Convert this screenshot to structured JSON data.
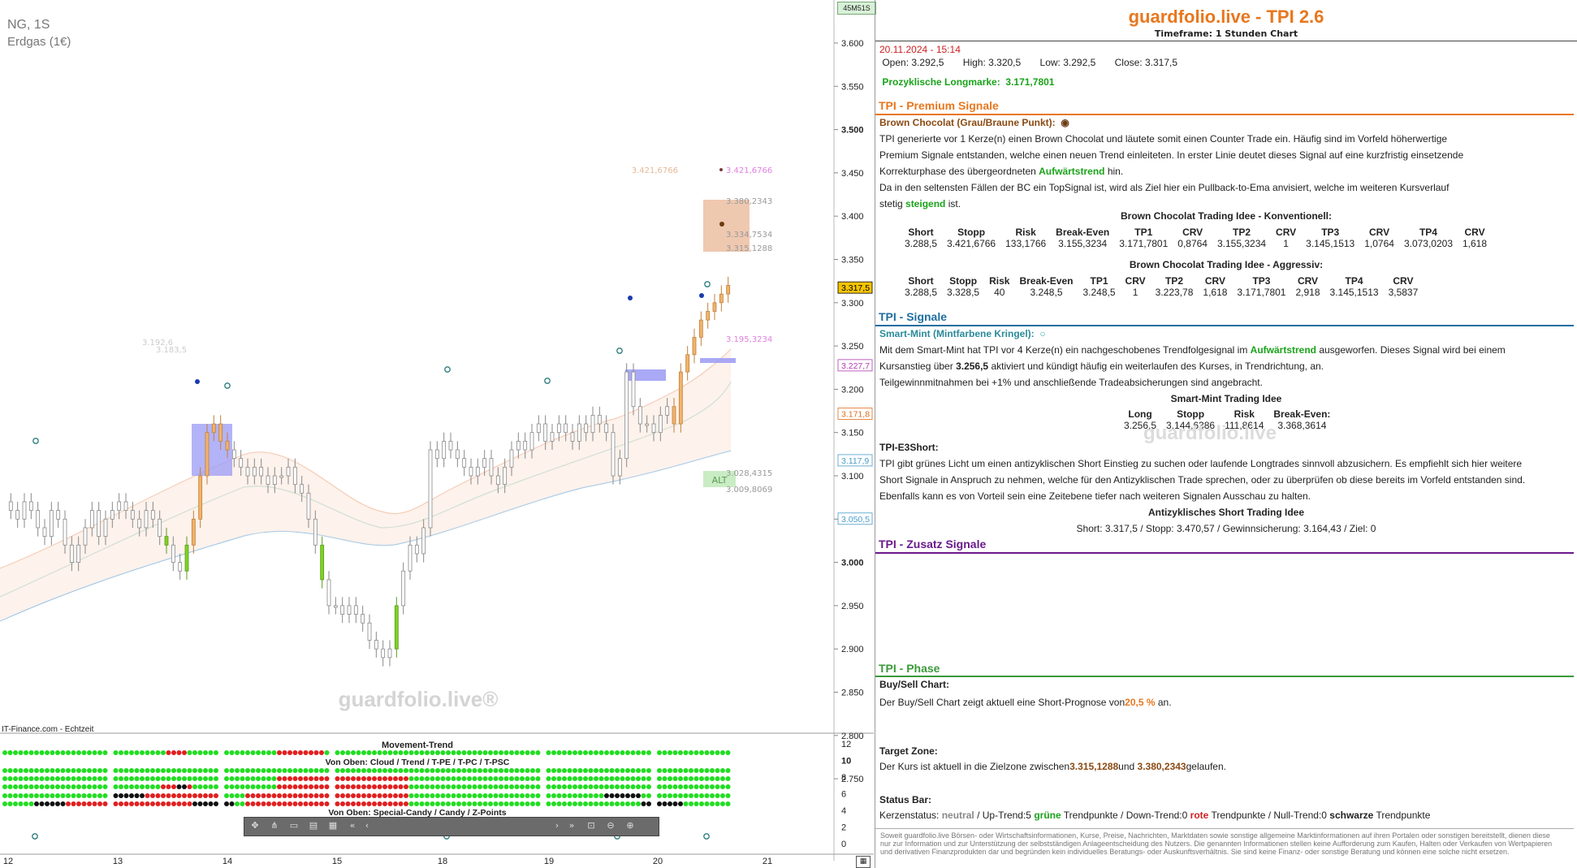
{
  "chart": {
    "symbol": "NG, 1S",
    "name": "Erdgas (1€)",
    "timer": "45M51S",
    "source": "IT-Finance.com - Echtzeit",
    "watermark": "guardfolio.live®",
    "y_ticks": [
      "3.600",
      "3.550",
      "3.500",
      "3.450",
      "3.400",
      "3.350",
      "3.300",
      "3.250",
      "3.200",
      "3.150",
      "3.100",
      "3.050",
      "3.000",
      "2.950",
      "2.900",
      "2.850",
      "2.800",
      "2.750"
    ],
    "x_ticks": [
      "12",
      "13",
      "14",
      "15",
      "18",
      "19",
      "20",
      "21"
    ],
    "price_tags": [
      {
        "label": "3.317,5",
        "color": "#f5c400",
        "text": "#000"
      },
      {
        "label": "3.227,7",
        "color": "#ffffff",
        "text": "#b03cb0"
      },
      {
        "label": "3.171,8",
        "color": "#ffffff",
        "text": "#e06d1e"
      },
      {
        "label": "3.117,9",
        "color": "#ffffff",
        "text": "#4a9cc8"
      },
      {
        "label": "3.050,5",
        "color": "#ffffff",
        "text": "#4a9cc8"
      }
    ],
    "annotations": {
      "a1": "3.421,6766",
      "a2": "3.421,6766",
      "a3": "3.380,2343",
      "a4": "3.334,7534",
      "a5": "3.315,1288",
      "a6": "3.195,3234",
      "a7": "3.192,6",
      "a8": "3.183,5",
      "a9": "3.028,4315",
      "a10": "3.009,8069",
      "alt": "ALT"
    },
    "indicator": {
      "title": "Movement-Trend",
      "sub1": "Von Oben: Cloud / Trend / T-PE / T-PC / T-PSC",
      "sub2": "Von Oben: Special-Candy / Candy / Z-Points",
      "y_ticks": [
        "12",
        "10",
        "8",
        "6",
        "4",
        "2",
        "0"
      ]
    }
  },
  "panel": {
    "title": "guardfolio.live - TPI 2.6",
    "timeframe": "Timeframe: 1 Stunden Chart",
    "datetime": "20.11.2024 - 15:14",
    "open_label": "Open:",
    "open": "3.292,5",
    "high_label": "High:",
    "high": "3.320,5",
    "low_label": "Low:",
    "low": "3.292,5",
    "close_label": "Close:",
    "close": "3.317,5",
    "prozyk_label": "Prozyklische Longmarke:",
    "prozyk": "3.171,7801",
    "premium": {
      "title": "TPI - Premium Signale",
      "bc_label": "Brown Chocolat (Grau/Braune Punkt):",
      "l1": "TPI generierte vor 1  Kerze(n) einen Brown Chocolat und läutete somit einen Counter Trade ein. Häufig sind im Vorfeld höherwertige",
      "l2": "Premium Signale entstanden, welche einen neuen Trend einleiteten. In erster Linie deutet dieses Signal auf eine kurzfristig einsetzende",
      "l3a": "Korrekturphase des übergeordneten ",
      "l3b": "Aufwärtstrend",
      "l3c": " hin.",
      "l4": "Da in den seltensten Fällen der BC ein TopSignal ist, wird als Ziel hier ein Pullback-to-Ema anvisiert, welche im weiteren Kursverlauf",
      "l5a": "stetig ",
      "l5b": "steigend",
      "l5c": " ist.",
      "konv_title": "Brown Chocolat Trading Idee - Konventionell:",
      "aggr_title": "Brown Chocolat Trading Idee - Aggressiv:",
      "headers": [
        "Short",
        "Stopp",
        "Risk",
        "Break-Even",
        "TP1",
        "CRV",
        "TP2",
        "CRV",
        "TP3",
        "CRV",
        "TP4",
        "CRV"
      ],
      "konv": [
        "3.288,5",
        "3.421,6766",
        "133,1766",
        "3.155,3234",
        "3.171,7801",
        "0,8764",
        "3.155,3234",
        "1",
        "3.145,1513",
        "1,0764",
        "3.073,0203",
        "1,618"
      ],
      "aggr": [
        "3.288,5",
        "3.328,5",
        "40",
        "3.248,5",
        "3.248,5",
        "1",
        "3.223,78",
        "1,618",
        "3.171,7801",
        "2,918",
        "3.145,1513",
        "3,5837"
      ]
    },
    "signale": {
      "title": "TPI - Signale",
      "sm_label": "Smart-Mint (Mintfarbene Kringel):",
      "l1a": "Mit dem Smart-Mint hat TPI vor 4  Kerze(n) ein nachgeschobenes Trendfolgesignal im ",
      "l1b": "Aufwärtstrend",
      "l1c": " ausgeworfen. Dieses Signal wird bei einem",
      "l2a": "Kursanstieg über ",
      "l2b": "3.256,5",
      "l2c": "   aktiviert und kündigt häufig ein weiterlaufen des Kurses, in Trendrichtung, an.",
      "l3": "Teilgewinnmitnahmen bei +1% und anschließende Tradeabsicherungen sind angebracht.",
      "sm_title": "Smart-Mint Trading Idee",
      "sm_headers": [
        "Long",
        "Stopp",
        "Risk",
        "Break-Even:"
      ],
      "sm_values": [
        "3.256,5",
        "3.144,6386",
        "111,8614",
        "3.368,3614"
      ],
      "watermark": "guardfolio.live",
      "e3_label": "TPI-E3Short:",
      "e3_l1": "TPI gibt grünes Licht um einen antizyklischen Short Einstieg zu suchen oder laufende Longtrades sinnvoll abzusichern. Es empfiehlt sich hier weitere",
      "e3_l2": "Short Signale in Anspruch zu nehmen, welche für den Antizyklischen Trade sprechen, oder zu überprüfen ob diese bereits im Vorfeld entstanden sind.",
      "e3_l3": "Ebenfalls kann es von Vorteil sein eine Zeitebene tiefer nach weiteren Signalen Ausschau zu halten.",
      "anti_title": "Antizyklisches Short Trading Idee",
      "anti_line": "Short:  3.317,5   / Stopp:  3.470,57  / Gewinnsicherung:  3.164,43  / Ziel:       0"
    },
    "zusatz": {
      "title": "TPI - Zusatz Signale"
    },
    "phase": {
      "title": "TPI - Phase",
      "bs_label": "Buy/Sell Chart:",
      "bs_a": "Der Buy/Sell Chart zeigt aktuell eine Short-Prognose von",
      "bs_b": "20,5 %",
      "bs_c": " an.",
      "tz_label": "Target Zone:",
      "tz_a": "Der Kurs ist aktuell in die Zielzone zwischen",
      "tz_b": "3.315,1288",
      "tz_c": "und  ",
      "tz_d": "3.380,2343",
      "tz_e": "gelaufen.",
      "sb_label": "Status Bar:",
      "sb_1": "Kerzenstatus: ",
      "sb_2": "neutral",
      "sb_3": "  / Up-Trend:5 ",
      "sb_4": "grüne",
      "sb_5": " Trendpunkte  / Down-Trend:0 ",
      "sb_6": "rote",
      "sb_7": " Trendpunkte  / Null-Trend:0 ",
      "sb_8": "schwarze",
      "sb_9": " Trendpunkte"
    },
    "disclaimer": "Soweit guardfolio.live Börsen- oder Wirtschaftsinformationen, Kurse, Preise, Nachrichten, Marktdaten sowie sonstige allgemeine Marktinformationen auf ihren Portalen oder sonstigen bereitstellt, dienen diese nur zur Information und zur Unterstützung der selbstständigen Anlageentscheidung des Nutzers. Die genannten Informationen stellen keine Aufforderung zum Kaufen, Halten oder Verkaufen von Wertpapieren und derivativen Finanzprodukten dar und begründen kein individuelles Beratungs- oder Auskunftsverhältnis. Sie sind keine Finanz- oder sonstige Beratung und können eine solche nicht ersetzen."
  }
}
